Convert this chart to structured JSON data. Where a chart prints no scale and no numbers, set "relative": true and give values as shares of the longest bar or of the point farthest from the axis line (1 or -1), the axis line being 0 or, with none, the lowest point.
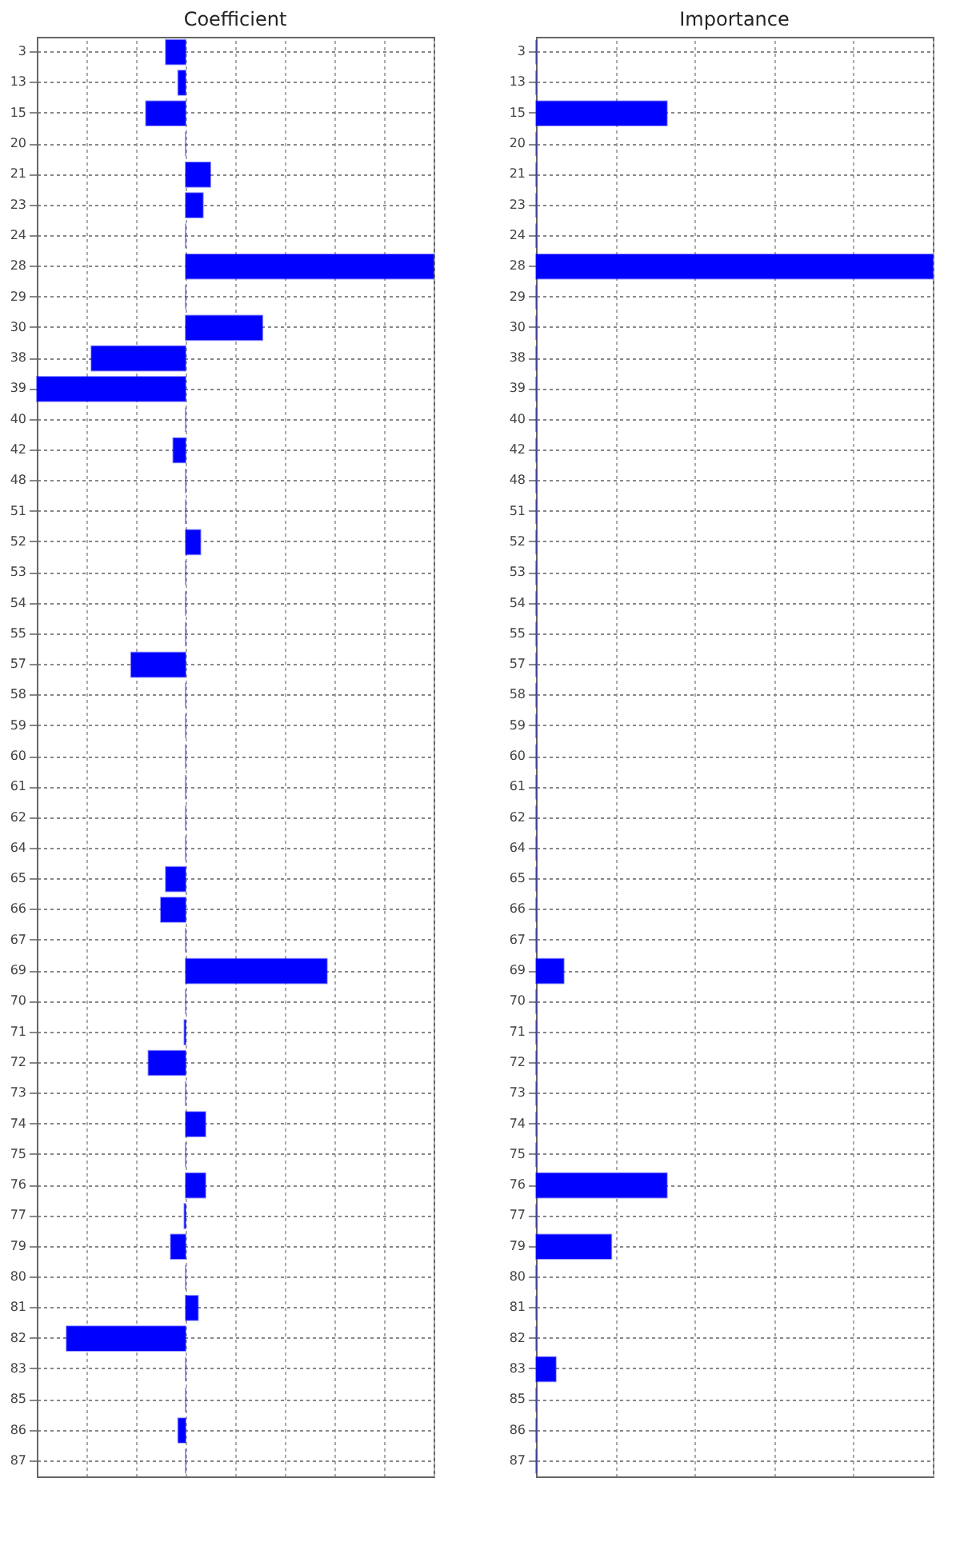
{
  "chart_data": [
    {
      "type": "bar",
      "title": "Coefficient",
      "orientation": "horizontal",
      "relative": true,
      "grid": true,
      "color": "#0000ff",
      "categories": [
        "3",
        "13",
        "15",
        "20",
        "21",
        "23",
        "24",
        "28",
        "29",
        "30",
        "38",
        "39",
        "40",
        "42",
        "48",
        "51",
        "52",
        "53",
        "54",
        "55",
        "57",
        "58",
        "59",
        "60",
        "61",
        "62",
        "64",
        "65",
        "66",
        "67",
        "69",
        "70",
        "71",
        "72",
        "73",
        "74",
        "75",
        "76",
        "77",
        "79",
        "80",
        "81",
        "82",
        "83",
        "85",
        "86",
        "87"
      ],
      "values": [
        -0.08,
        -0.03,
        -0.16,
        0,
        0.1,
        0.07,
        0,
        1,
        0,
        0.31,
        -0.38,
        -0.6,
        0,
        -0.05,
        0,
        0,
        0.06,
        0,
        0,
        0,
        -0.22,
        0,
        0,
        0,
        0,
        0,
        0,
        -0.08,
        -0.1,
        0,
        0.57,
        0,
        -0.005,
        -0.15,
        0,
        0.08,
        0,
        0.08,
        -0.005,
        -0.06,
        0,
        0.05,
        -0.48,
        0,
        0,
        -0.03,
        0
      ]
    },
    {
      "type": "bar",
      "title": "Importance",
      "orientation": "horizontal",
      "relative": true,
      "grid": true,
      "color": "#0000ff",
      "categories": [
        "3",
        "13",
        "15",
        "20",
        "21",
        "23",
        "24",
        "28",
        "29",
        "30",
        "38",
        "39",
        "40",
        "42",
        "48",
        "51",
        "52",
        "53",
        "54",
        "55",
        "57",
        "58",
        "59",
        "60",
        "61",
        "62",
        "64",
        "65",
        "66",
        "67",
        "69",
        "70",
        "71",
        "72",
        "73",
        "74",
        "75",
        "76",
        "77",
        "79",
        "80",
        "81",
        "82",
        "83",
        "85",
        "86",
        "87"
      ],
      "values": [
        0,
        0,
        0.33,
        0,
        0,
        0,
        0,
        1,
        0,
        0,
        0,
        0,
        0,
        0,
        0,
        0,
        0,
        0,
        0,
        0,
        0,
        0,
        0,
        0,
        0,
        0,
        0,
        0,
        0,
        0,
        0.07,
        0,
        0,
        0,
        0,
        0,
        0,
        0.33,
        0,
        0.19,
        0,
        0,
        0,
        0.05,
        0,
        0,
        0
      ]
    }
  ]
}
